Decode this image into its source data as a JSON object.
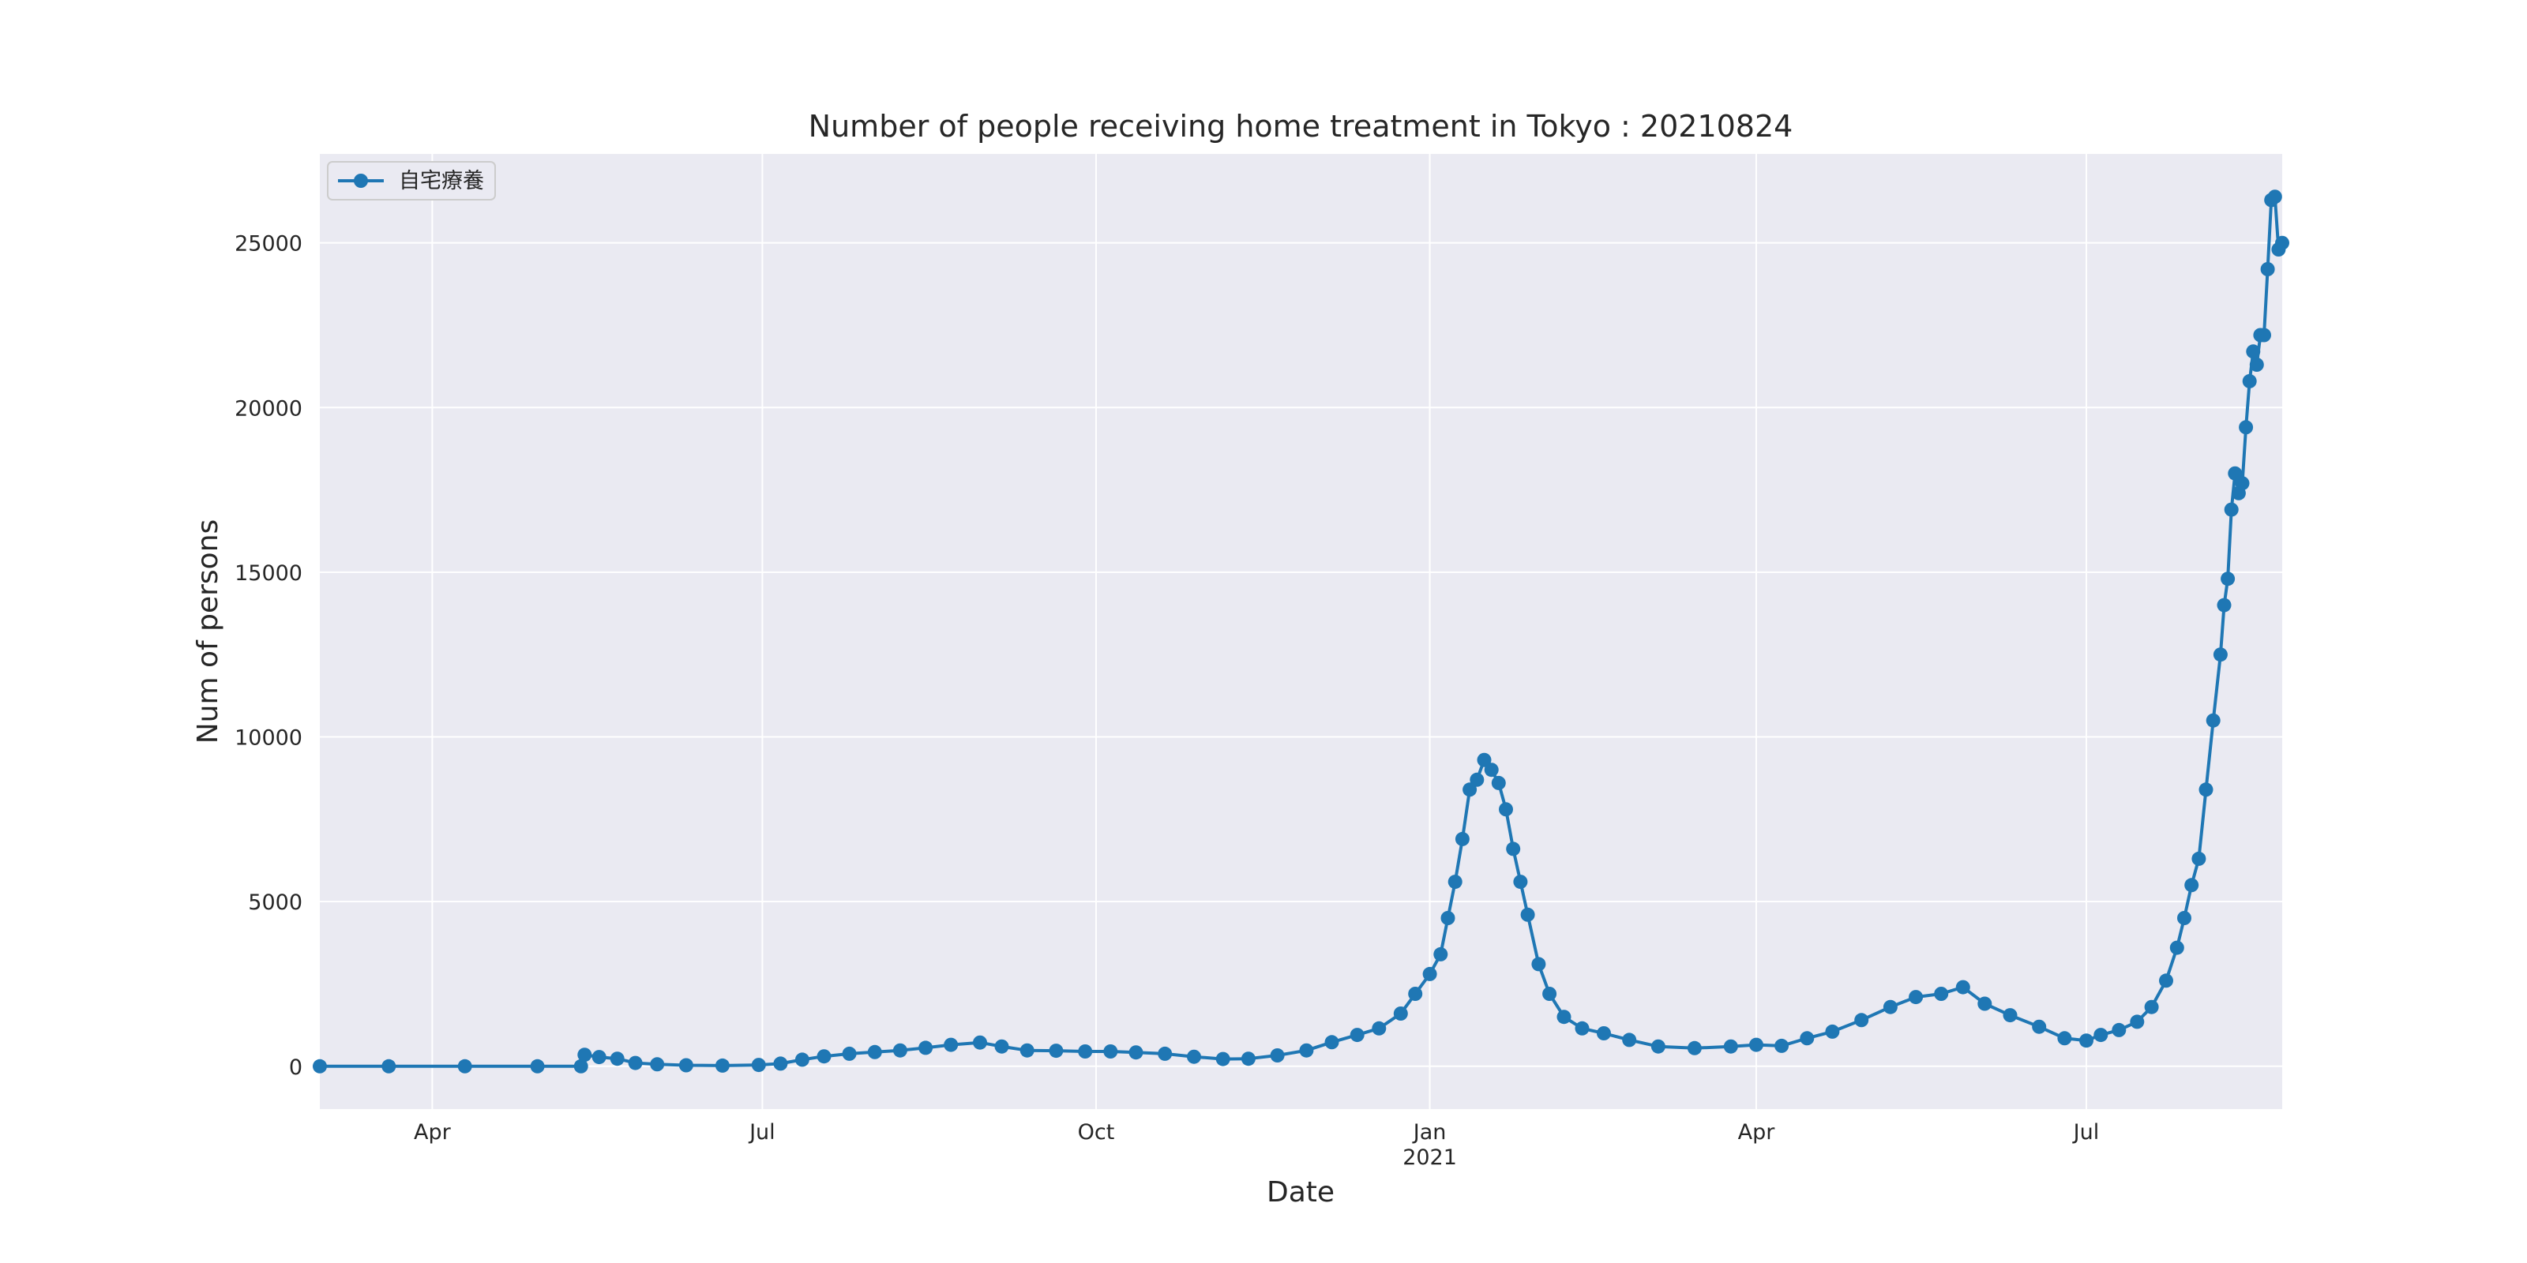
{
  "chart_data": {
    "type": "line",
    "title": "Number of people receiving home treatment in Tokyo : 20210824",
    "xlabel": "Date",
    "ylabel": "Num of persons",
    "x_range": [
      "2020-03-01",
      "2021-08-24"
    ],
    "ylim": [
      -1300,
      27700
    ],
    "x_ticks": [
      {
        "date": "2020-04-01",
        "label": "Apr",
        "sublabel": ""
      },
      {
        "date": "2020-07-01",
        "label": "Jul",
        "sublabel": ""
      },
      {
        "date": "2020-10-01",
        "label": "Oct",
        "sublabel": ""
      },
      {
        "date": "2021-01-01",
        "label": "Jan",
        "sublabel": "2021"
      },
      {
        "date": "2021-04-01",
        "label": "Apr",
        "sublabel": ""
      },
      {
        "date": "2021-07-01",
        "label": "Jul",
        "sublabel": ""
      }
    ],
    "y_ticks": [
      0,
      5000,
      10000,
      15000,
      20000,
      25000
    ],
    "grid": true,
    "legend_position": "top-left",
    "series": [
      {
        "name": "自宅療養",
        "color": "#1f77b4",
        "marker": "circle",
        "points": [
          [
            "2020-03-01",
            0
          ],
          [
            "2020-03-20",
            0
          ],
          [
            "2020-04-10",
            0
          ],
          [
            "2020-04-30",
            0
          ],
          [
            "2020-05-12",
            0
          ],
          [
            "2020-05-13",
            350
          ],
          [
            "2020-05-17",
            280
          ],
          [
            "2020-05-22",
            230
          ],
          [
            "2020-05-27",
            100
          ],
          [
            "2020-06-02",
            60
          ],
          [
            "2020-06-10",
            30
          ],
          [
            "2020-06-20",
            20
          ],
          [
            "2020-06-30",
            40
          ],
          [
            "2020-07-06",
            80
          ],
          [
            "2020-07-12",
            200
          ],
          [
            "2020-07-18",
            300
          ],
          [
            "2020-07-25",
            380
          ],
          [
            "2020-08-01",
            430
          ],
          [
            "2020-08-08",
            480
          ],
          [
            "2020-08-15",
            560
          ],
          [
            "2020-08-22",
            650
          ],
          [
            "2020-08-30",
            720
          ],
          [
            "2020-09-05",
            600
          ],
          [
            "2020-09-12",
            480
          ],
          [
            "2020-09-20",
            470
          ],
          [
            "2020-09-28",
            450
          ],
          [
            "2020-10-05",
            450
          ],
          [
            "2020-10-12",
            420
          ],
          [
            "2020-10-20",
            380
          ],
          [
            "2020-10-28",
            290
          ],
          [
            "2020-11-05",
            220
          ],
          [
            "2020-11-12",
            230
          ],
          [
            "2020-11-20",
            330
          ],
          [
            "2020-11-28",
            480
          ],
          [
            "2020-12-05",
            730
          ],
          [
            "2020-12-12",
            950
          ],
          [
            "2020-12-18",
            1150
          ],
          [
            "2020-12-24",
            1600
          ],
          [
            "2020-12-28",
            2200
          ],
          [
            "2021-01-01",
            2800
          ],
          [
            "2021-01-04",
            3400
          ],
          [
            "2021-01-06",
            4500
          ],
          [
            "2021-01-08",
            5600
          ],
          [
            "2021-01-10",
            6900
          ],
          [
            "2021-01-12",
            8400
          ],
          [
            "2021-01-14",
            8700
          ],
          [
            "2021-01-16",
            9300
          ],
          [
            "2021-01-18",
            9000
          ],
          [
            "2021-01-20",
            8600
          ],
          [
            "2021-01-22",
            7800
          ],
          [
            "2021-01-24",
            6600
          ],
          [
            "2021-01-26",
            5600
          ],
          [
            "2021-01-28",
            4600
          ],
          [
            "2021-01-31",
            3100
          ],
          [
            "2021-02-03",
            2200
          ],
          [
            "2021-02-07",
            1500
          ],
          [
            "2021-02-12",
            1150
          ],
          [
            "2021-02-18",
            1000
          ],
          [
            "2021-02-25",
            800
          ],
          [
            "2021-03-05",
            600
          ],
          [
            "2021-03-15",
            550
          ],
          [
            "2021-03-25",
            600
          ],
          [
            "2021-04-01",
            650
          ],
          [
            "2021-04-08",
            620
          ],
          [
            "2021-04-15",
            850
          ],
          [
            "2021-04-22",
            1050
          ],
          [
            "2021-04-30",
            1400
          ],
          [
            "2021-05-08",
            1800
          ],
          [
            "2021-05-15",
            2100
          ],
          [
            "2021-05-22",
            2200
          ],
          [
            "2021-05-28",
            2400
          ],
          [
            "2021-06-03",
            1900
          ],
          [
            "2021-06-10",
            1550
          ],
          [
            "2021-06-18",
            1200
          ],
          [
            "2021-06-25",
            850
          ],
          [
            "2021-07-01",
            780
          ],
          [
            "2021-07-05",
            950
          ],
          [
            "2021-07-10",
            1100
          ],
          [
            "2021-07-15",
            1350
          ],
          [
            "2021-07-19",
            1800
          ],
          [
            "2021-07-23",
            2600
          ],
          [
            "2021-07-26",
            3600
          ],
          [
            "2021-07-28",
            4500
          ],
          [
            "2021-07-30",
            5500
          ],
          [
            "2021-08-01",
            6300
          ],
          [
            "2021-08-03",
            8400
          ],
          [
            "2021-08-05",
            10500
          ],
          [
            "2021-08-07",
            12500
          ],
          [
            "2021-08-08",
            14000
          ],
          [
            "2021-08-09",
            14800
          ],
          [
            "2021-08-10",
            16900
          ],
          [
            "2021-08-11",
            18000
          ],
          [
            "2021-08-12",
            17400
          ],
          [
            "2021-08-13",
            17700
          ],
          [
            "2021-08-14",
            19400
          ],
          [
            "2021-08-15",
            20800
          ],
          [
            "2021-08-16",
            21700
          ],
          [
            "2021-08-17",
            21300
          ],
          [
            "2021-08-18",
            22200
          ],
          [
            "2021-08-19",
            22200
          ],
          [
            "2021-08-20",
            24200
          ],
          [
            "2021-08-21",
            26300
          ],
          [
            "2021-08-22",
            26400
          ],
          [
            "2021-08-23",
            24800
          ],
          [
            "2021-08-24",
            25000
          ]
        ]
      }
    ]
  }
}
